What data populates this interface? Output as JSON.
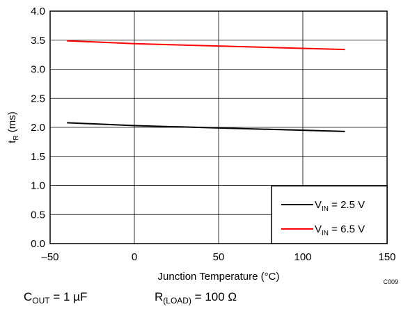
{
  "chart_data": {
    "type": "line",
    "xlabel": "Junction Temperature (°C)",
    "ylabel": {
      "main": "t",
      "sub": "R",
      "rest": " (ms)"
    },
    "xlim": [
      -50,
      150
    ],
    "ylim": [
      0,
      4
    ],
    "x_ticks": [
      -50,
      0,
      50,
      100,
      150
    ],
    "x_tick_labels": [
      "–50",
      "0",
      "50",
      "100",
      "150"
    ],
    "y_ticks": [
      0,
      0.5,
      1,
      1.5,
      2,
      2.5,
      3,
      3.5,
      4
    ],
    "y_tick_labels": [
      "0.0",
      "0.5",
      "1.0",
      "1.5",
      "2.0",
      "2.5",
      "3.0",
      "3.5",
      "4.0"
    ],
    "grid": true,
    "legend_position": "bottom-right",
    "series": [
      {
        "name": "V_IN = 2.5 V",
        "legend": {
          "main": "V",
          "sub": "IN",
          "rest": " = 2.5 V"
        },
        "color": "#000000",
        "x": [
          -40,
          0,
          50,
          100,
          125
        ],
        "y": [
          2.08,
          2.03,
          1.99,
          1.95,
          1.93
        ]
      },
      {
        "name": "V_IN = 6.5 V",
        "legend": {
          "main": "V",
          "sub": "IN",
          "rest": " = 6.5 V"
        },
        "color": "#ff0000",
        "x": [
          -40,
          0,
          50,
          100,
          125
        ],
        "y": [
          3.49,
          3.44,
          3.4,
          3.36,
          3.34
        ]
      }
    ]
  },
  "figure_code": "C009",
  "conditions": [
    {
      "main": "C",
      "sub": "OUT",
      "rest": " = 1 µF"
    },
    {
      "main": "R",
      "sub": "(LOAD)",
      "rest": " = 100 Ω"
    }
  ]
}
